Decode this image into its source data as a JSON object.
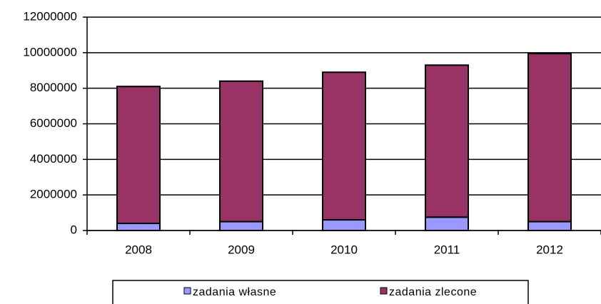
{
  "chart_data": {
    "type": "stacked_bar",
    "categories": [
      "2008",
      "2009",
      "2010",
      "2011",
      "2012"
    ],
    "series": [
      {
        "name": "zadania własne",
        "color": "#9999ff",
        "values": [
          400000,
          500000,
          600000,
          750000,
          500000
        ]
      },
      {
        "name": "zadania zlecone",
        "color": "#993366",
        "values": [
          7700000,
          7900000,
          8300000,
          8550000,
          9450000
        ]
      }
    ],
    "ylim": [
      0,
      12000000
    ],
    "yticks": [
      0,
      2000000,
      4000000,
      6000000,
      8000000,
      10000000,
      12000000
    ],
    "grid": true,
    "legend": "bottom"
  }
}
